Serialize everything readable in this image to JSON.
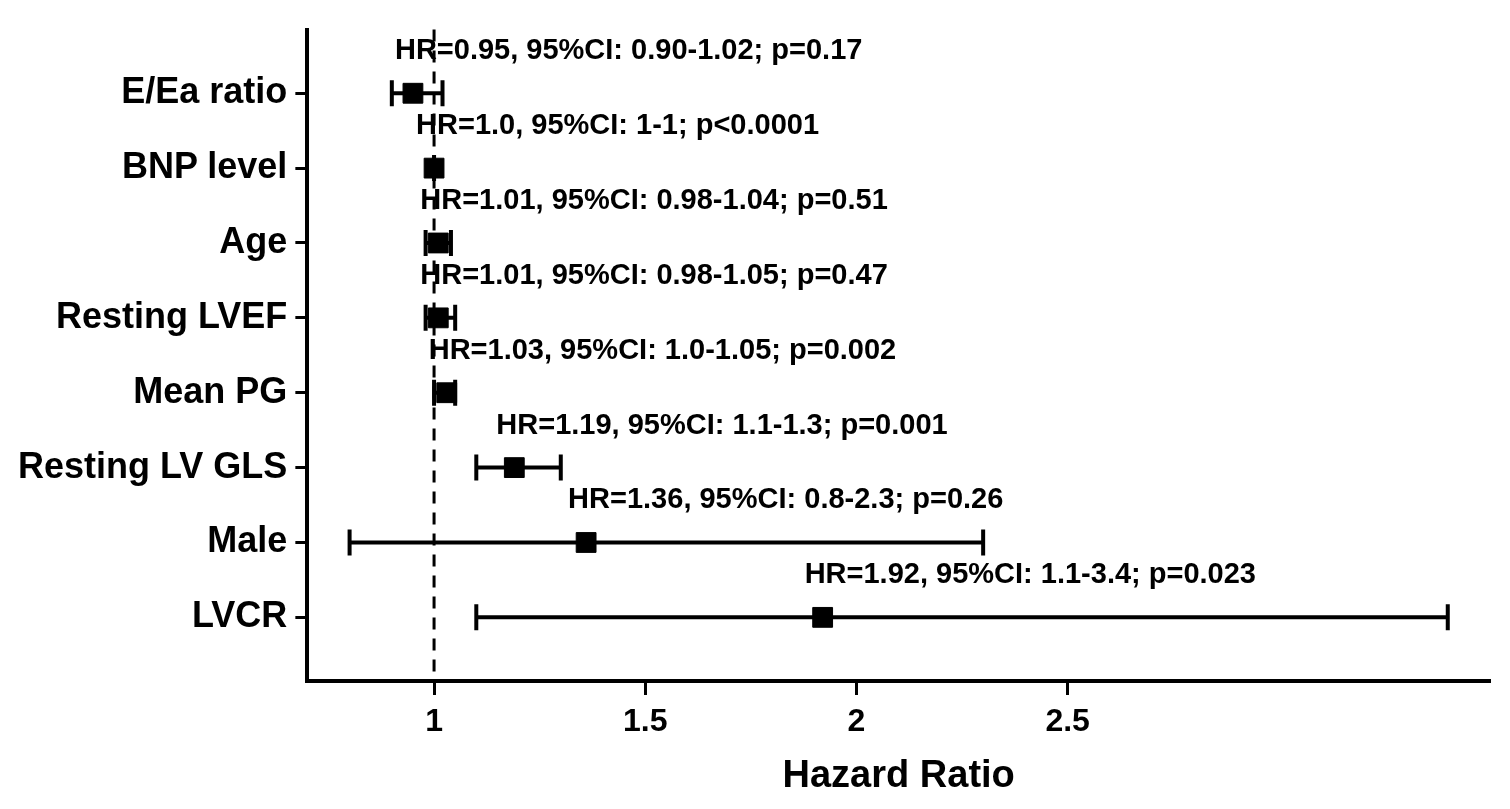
{
  "chart_data": {
    "type": "scatter",
    "orientation": "horizontal",
    "marker": "square",
    "color": "#000000",
    "xlabel": "Hazard Ratio",
    "categories": [
      "E/Ea ratio",
      "BNP level",
      "Age",
      "Resting LVEF",
      "Mean PG",
      "Resting LV GLS",
      "Male",
      "LVCR"
    ],
    "values": [
      0.95,
      1.0,
      1.01,
      1.01,
      1.03,
      1.19,
      1.36,
      1.92
    ],
    "errors": [
      [
        0.9,
        1.02
      ],
      [
        1,
        1
      ],
      [
        0.98,
        1.04
      ],
      [
        0.98,
        1.05
      ],
      [
        1.0,
        1.05
      ],
      [
        1.1,
        1.3
      ],
      [
        0.8,
        2.3
      ],
      [
        1.1,
        3.4
      ]
    ],
    "xlim": [
      0.7,
      3.5
    ],
    "xticks": [
      1,
      1.5,
      2,
      2.5
    ],
    "ref_lines": [
      {
        "axis": "x",
        "value": 1,
        "line_style": "dashed",
        "color": "#000000"
      }
    ],
    "annotations": [
      "HR=0.95, 95%CI: 0.90-1.02; p=0.17",
      "HR=1.0, 95%CI: 1-1; p<0.0001",
      "HR=1.01, 95%CI: 0.98-1.04; p=0.51",
      "HR=1.01, 95%CI: 0.98-1.05; p=0.47",
      "HR=1.03, 95%CI: 1.0-1.05; p=0.002",
      "HR=1.19, 95%CI: 1.1-1.3; p=0.001",
      "HR=1.36, 95%CI: 0.8-2.3; p=0.26",
      "HR=1.92, 95%CI: 1.1-3.4; p=0.023"
    ]
  }
}
